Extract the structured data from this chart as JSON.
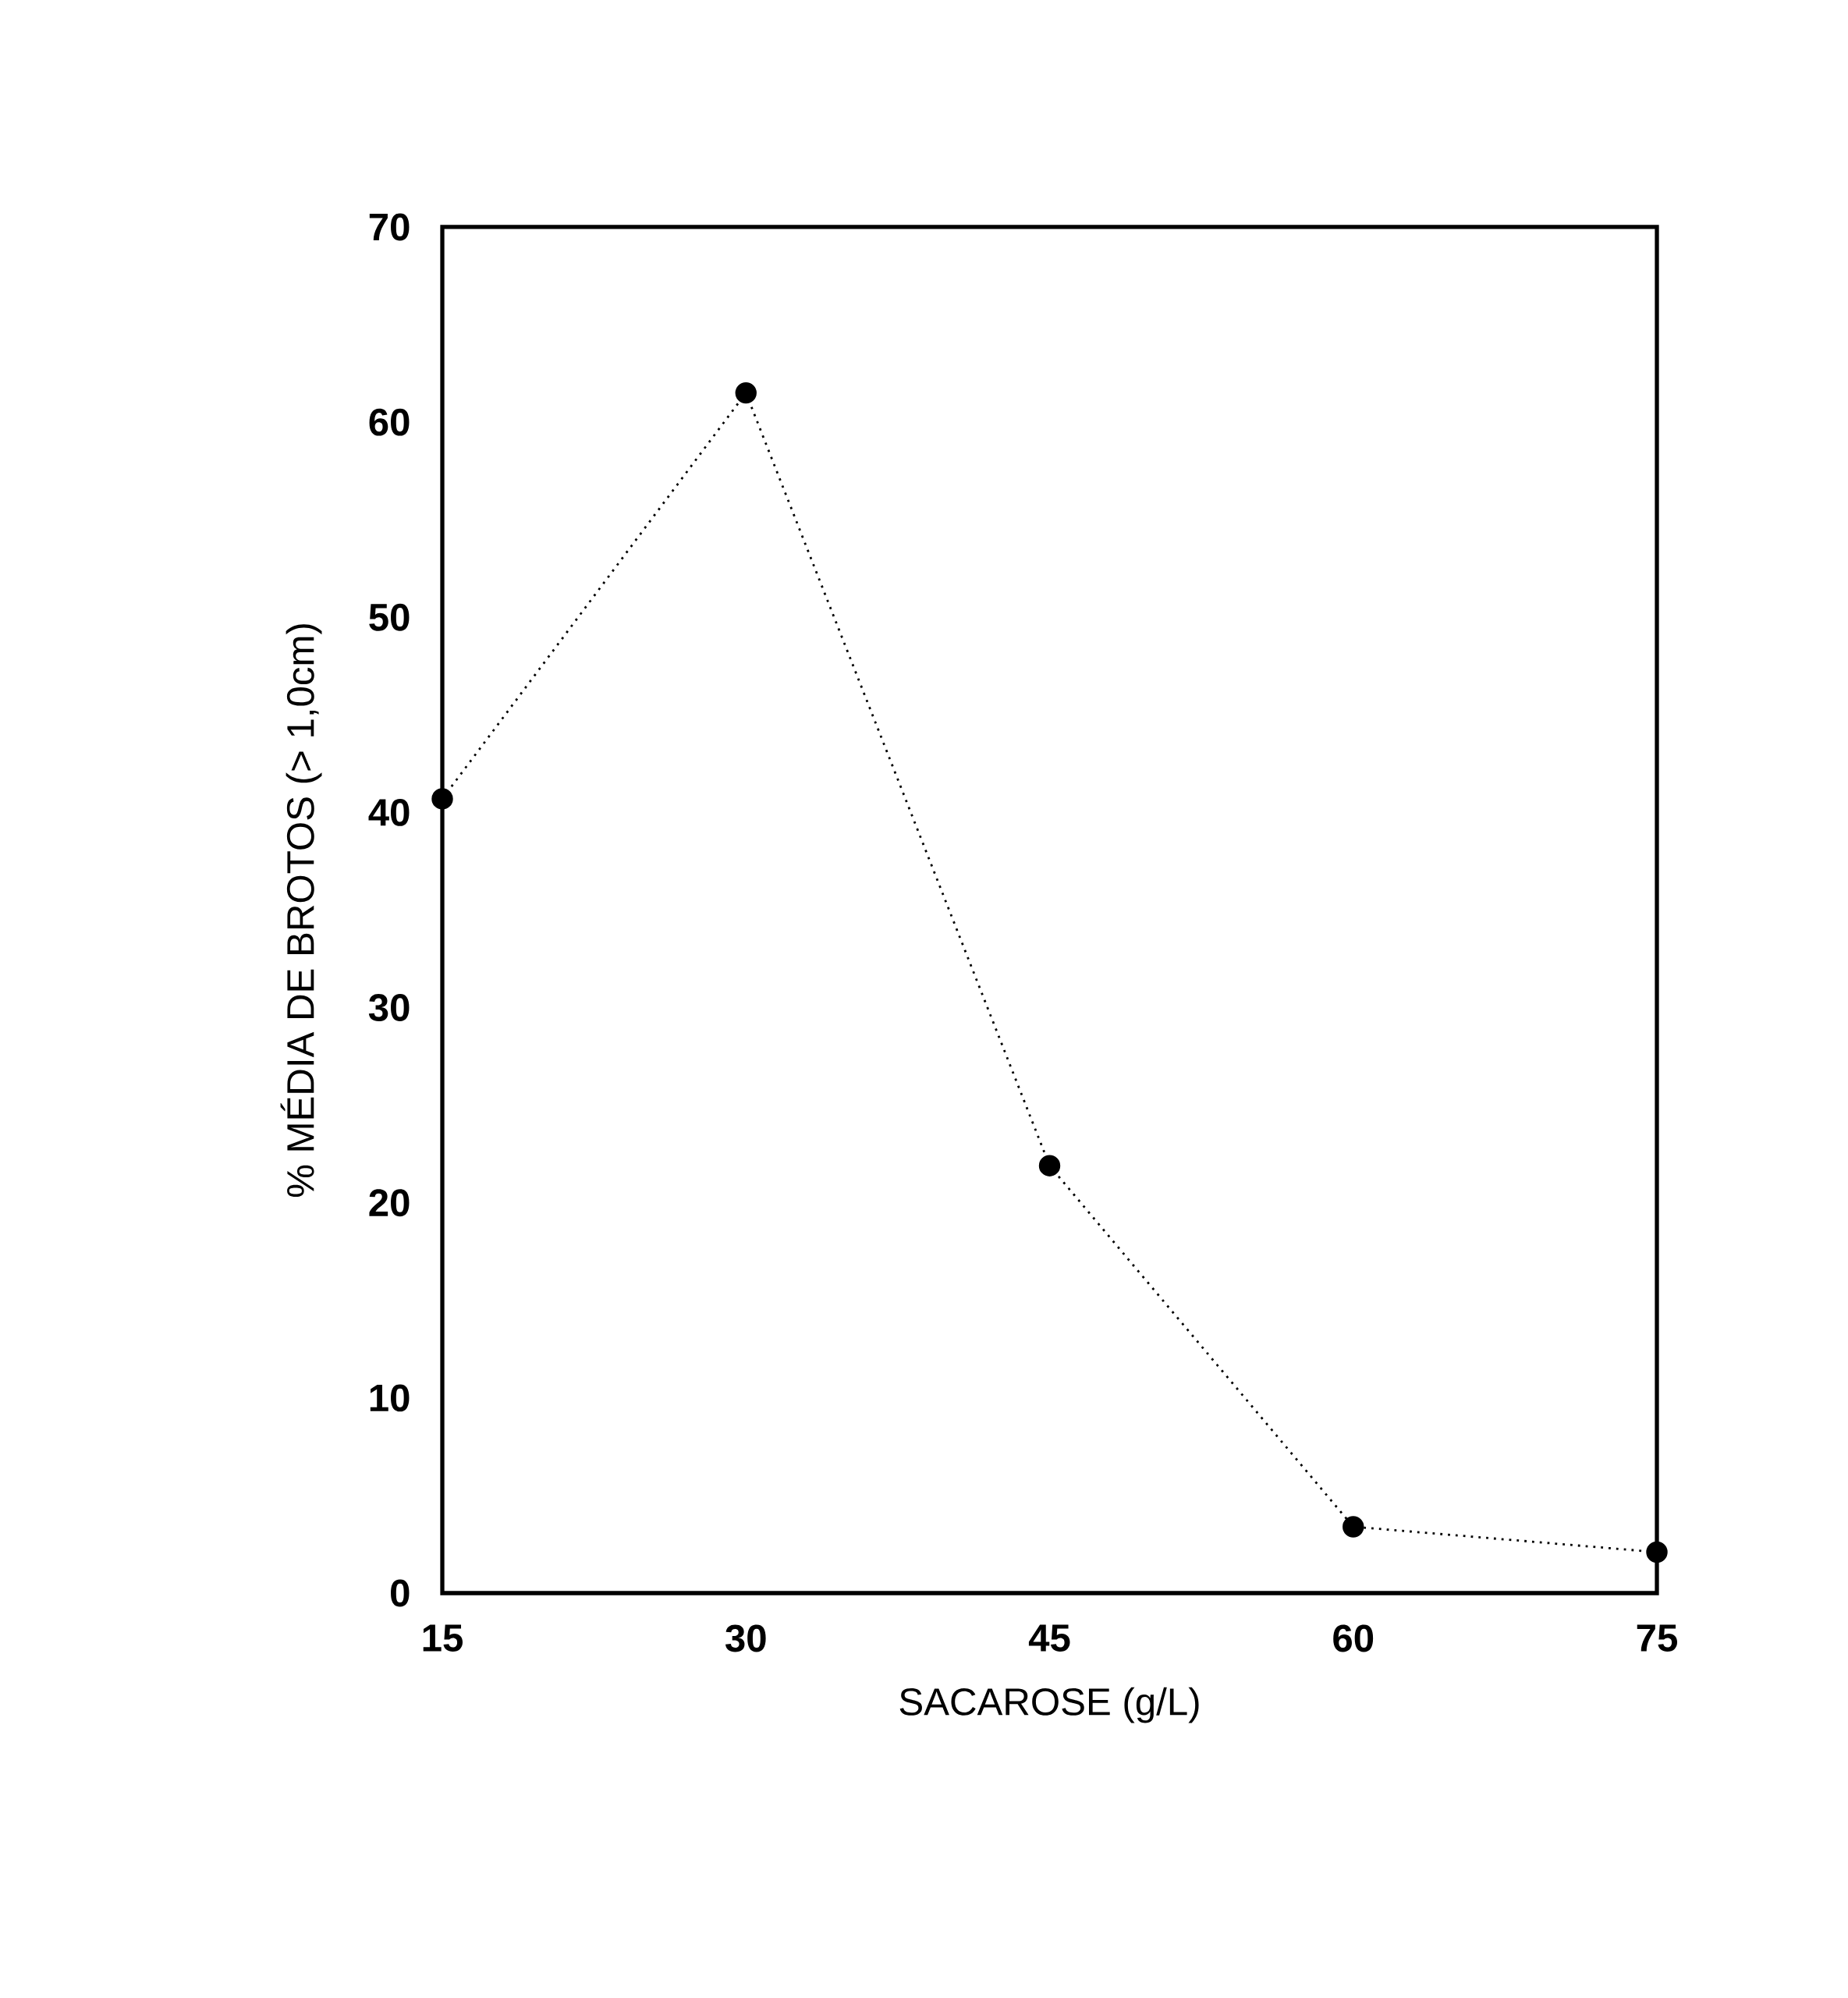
{
  "chart_data": {
    "type": "line",
    "xlabel": "SACAROSE (g/L)",
    "ylabel": "% MÉDIA DE BROTOS (> 1,0cm)",
    "x": [
      15,
      30,
      45,
      60,
      75
    ],
    "values": [
      40.7,
      61.5,
      21.9,
      3.4,
      2.1
    ],
    "color": "#000000",
    "marker": "circle",
    "line_style": "dotted",
    "xlim": [
      15,
      75
    ],
    "xticks": [
      15,
      30,
      45,
      60,
      75
    ],
    "ylim": [
      0,
      70
    ],
    "yticks": [
      0,
      10,
      20,
      30,
      40,
      50,
      60,
      70
    ]
  }
}
